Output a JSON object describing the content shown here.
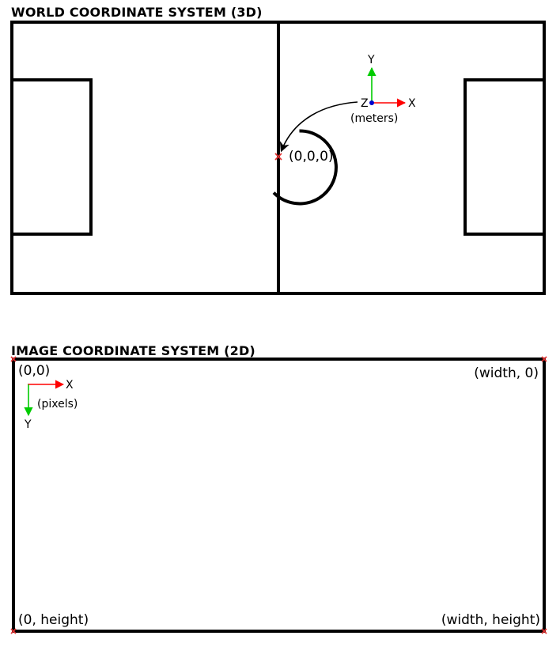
{
  "world": {
    "title": "WORLD COORDINATE SYSTEM (3D)",
    "origin_label": "(0,0,0)",
    "axis_x": "X",
    "axis_y": "Y",
    "axis_z": "Z",
    "units": "(meters)"
  },
  "image": {
    "title": "IMAGE COORDINATE SYSTEM (2D)",
    "corner_top_left": "(0,0)",
    "corner_top_right": "(width, 0)",
    "corner_bottom_left": "(0, height)",
    "corner_bottom_right": "(width, height)",
    "axis_x": "X",
    "axis_y": "Y",
    "units": "(pixels)"
  },
  "colors": {
    "lines": "#000000",
    "axis_x": "#ff0000",
    "axis_y": "#00cc00",
    "axis_z": "#0000cc",
    "marker": "#e03030"
  }
}
